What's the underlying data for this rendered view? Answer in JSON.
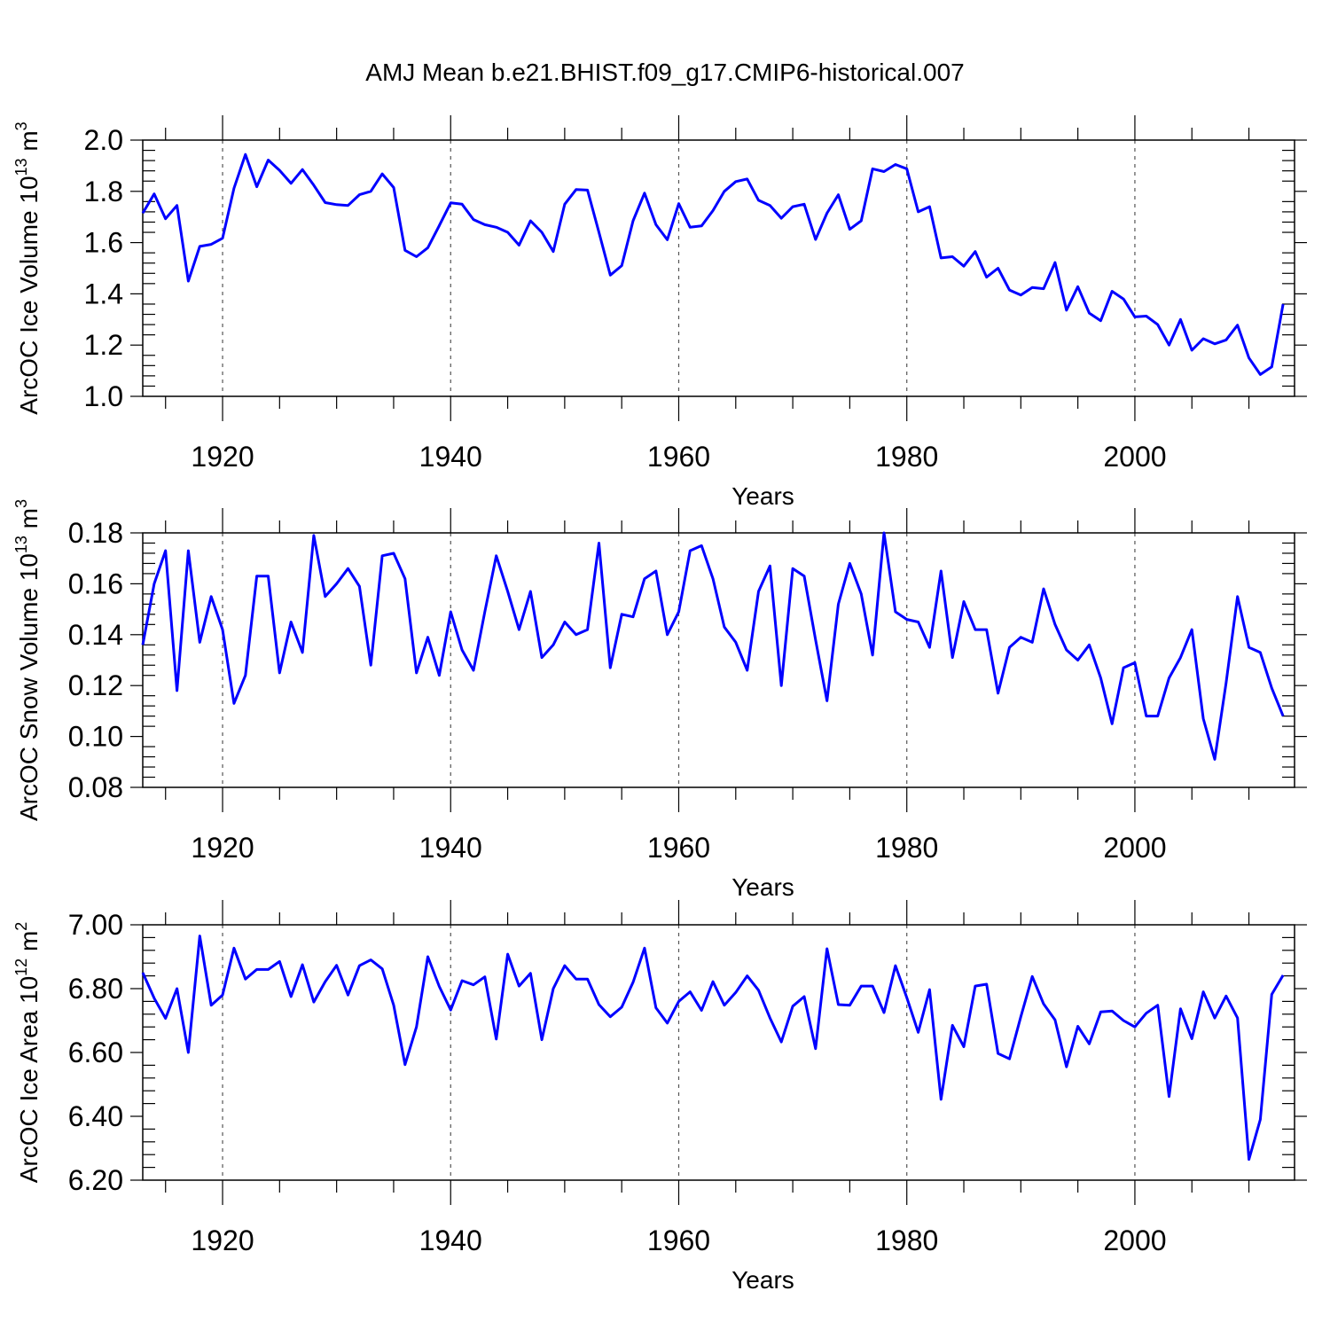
{
  "title": "AMJ Mean b.e21.BHIST.f09_g17.CMIP6-historical.007",
  "line_color": "#0000ff",
  "chart_data": [
    {
      "type": "line",
      "name": "ice-volume",
      "ylabel_main": "ArcOC Ice Volume 10",
      "ylabel_exp": "13",
      "ylabel_unit": " m",
      "ylabel_unit_exp": "3",
      "xlabel": "Years",
      "xlim": [
        1913,
        2014
      ],
      "ylim": [
        1.0,
        2.0
      ],
      "x_ticks": [
        1920,
        1940,
        1960,
        1980,
        2000
      ],
      "x_tick_labels": [
        "1920",
        "1940",
        "1960",
        "1980",
        "2000"
      ],
      "y_ticks": [
        1.0,
        1.2,
        1.4,
        1.6,
        1.8,
        2.0
      ],
      "y_tick_labels": [
        "1.0",
        "1.2",
        "1.4",
        "1.6",
        "1.8",
        "2.0"
      ],
      "x_start": 1913,
      "values": [
        1.715,
        1.79,
        1.693,
        1.745,
        1.45,
        1.585,
        1.593,
        1.617,
        1.812,
        1.944,
        1.818,
        1.922,
        1.882,
        1.831,
        1.885,
        1.824,
        1.756,
        1.748,
        1.745,
        1.787,
        1.8,
        1.868,
        1.815,
        1.57,
        1.545,
        1.58,
        1.666,
        1.755,
        1.75,
        1.69,
        1.67,
        1.66,
        1.64,
        1.59,
        1.685,
        1.64,
        1.565,
        1.75,
        1.807,
        1.805,
        1.64,
        1.473,
        1.51,
        1.685,
        1.793,
        1.67,
        1.611,
        1.752,
        1.66,
        1.665,
        1.725,
        1.8,
        1.838,
        1.848,
        1.765,
        1.745,
        1.695,
        1.74,
        1.75,
        1.612,
        1.715,
        1.787,
        1.652,
        1.685,
        1.888,
        1.877,
        1.905,
        1.888,
        1.72,
        1.74,
        1.54,
        1.545,
        1.508,
        1.565,
        1.465,
        1.5,
        1.415,
        1.395,
        1.425,
        1.42,
        1.522,
        1.336,
        1.428,
        1.325,
        1.295,
        1.41,
        1.38,
        1.31,
        1.313,
        1.28,
        1.2,
        1.3,
        1.18,
        1.225,
        1.205,
        1.22,
        1.278,
        1.15,
        1.085,
        1.115,
        1.36
      ]
    },
    {
      "type": "line",
      "name": "snow-volume",
      "ylabel_main": "ArcOC Snow Volume 10",
      "ylabel_exp": "13",
      "ylabel_unit": " m",
      "ylabel_unit_exp": "3",
      "xlabel": "Years",
      "xlim": [
        1913,
        2014
      ],
      "ylim": [
        0.08,
        0.18
      ],
      "x_ticks": [
        1920,
        1940,
        1960,
        1980,
        2000
      ],
      "x_tick_labels": [
        "1920",
        "1940",
        "1960",
        "1980",
        "2000"
      ],
      "y_ticks": [
        0.08,
        0.1,
        0.12,
        0.14,
        0.16,
        0.18
      ],
      "y_tick_labels": [
        "0.08",
        "0.10",
        "0.12",
        "0.14",
        "0.16",
        "0.18"
      ],
      "x_start": 1913,
      "values": [
        0.136,
        0.16,
        0.173,
        0.118,
        0.173,
        0.137,
        0.155,
        0.142,
        0.113,
        0.124,
        0.163,
        0.163,
        0.125,
        0.145,
        0.133,
        0.179,
        0.155,
        0.16,
        0.166,
        0.159,
        0.128,
        0.171,
        0.172,
        0.162,
        0.125,
        0.139,
        0.124,
        0.149,
        0.134,
        0.126,
        0.149,
        0.171,
        0.157,
        0.142,
        0.157,
        0.131,
        0.136,
        0.145,
        0.14,
        0.142,
        0.176,
        0.127,
        0.148,
        0.147,
        0.162,
        0.165,
        0.14,
        0.149,
        0.173,
        0.175,
        0.162,
        0.143,
        0.137,
        0.126,
        0.157,
        0.167,
        0.12,
        0.166,
        0.163,
        0.138,
        0.114,
        0.152,
        0.168,
        0.156,
        0.132,
        0.18,
        0.149,
        0.146,
        0.145,
        0.135,
        0.165,
        0.131,
        0.153,
        0.142,
        0.142,
        0.117,
        0.135,
        0.139,
        0.137,
        0.158,
        0.144,
        0.134,
        0.13,
        0.136,
        0.123,
        0.105,
        0.127,
        0.129,
        0.108,
        0.108,
        0.123,
        0.131,
        0.142,
        0.107,
        0.091,
        0.121,
        0.155,
        0.135,
        0.133,
        0.119,
        0.108
      ]
    },
    {
      "type": "line",
      "name": "ice-area",
      "ylabel_main": "ArcOC Ice Area 10",
      "ylabel_exp": "12",
      "ylabel_unit": " m",
      "ylabel_unit_exp": "2",
      "xlabel": "Years",
      "xlim": [
        1913,
        2014
      ],
      "ylim": [
        6.2,
        7.0
      ],
      "x_ticks": [
        1920,
        1940,
        1960,
        1980,
        2000
      ],
      "x_tick_labels": [
        "1920",
        "1940",
        "1960",
        "1980",
        "2000"
      ],
      "y_ticks": [
        6.2,
        6.4,
        6.6,
        6.8,
        7.0
      ],
      "y_tick_labels": [
        "6.20",
        "6.40",
        "6.60",
        "6.80",
        "7.00"
      ],
      "x_start": 1913,
      "values": [
        6.85,
        6.77,
        6.707,
        6.8,
        6.6,
        6.965,
        6.748,
        6.78,
        6.927,
        6.83,
        6.86,
        6.86,
        6.885,
        6.775,
        6.875,
        6.758,
        6.822,
        6.873,
        6.78,
        6.872,
        6.89,
        6.862,
        6.748,
        6.562,
        6.68,
        6.9,
        6.807,
        6.733,
        6.825,
        6.812,
        6.837,
        6.642,
        6.908,
        6.808,
        6.848,
        6.64,
        6.8,
        6.872,
        6.83,
        6.83,
        6.75,
        6.712,
        6.742,
        6.82,
        6.927,
        6.74,
        6.692,
        6.76,
        6.79,
        6.732,
        6.822,
        6.748,
        6.788,
        6.84,
        6.795,
        6.708,
        6.633,
        6.745,
        6.775,
        6.612,
        6.925,
        6.75,
        6.748,
        6.808,
        6.808,
        6.725,
        6.872,
        6.772,
        6.663,
        6.797,
        6.453,
        6.685,
        6.618,
        6.808,
        6.814,
        6.597,
        6.58,
        6.712,
        6.838,
        6.752,
        6.702,
        6.555,
        6.682,
        6.627,
        6.727,
        6.73,
        6.7,
        6.68,
        6.723,
        6.748,
        6.462,
        6.737,
        6.643,
        6.79,
        6.708,
        6.777,
        6.708,
        6.265,
        6.39,
        6.782,
        6.842
      ]
    }
  ]
}
